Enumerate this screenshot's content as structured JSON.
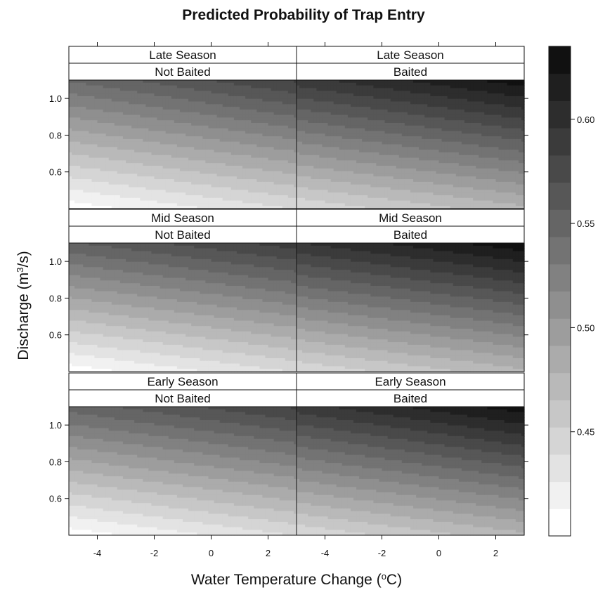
{
  "chart_data": {
    "type": "heatmap",
    "title": "Predicted Probability of Trap Entry",
    "xlabel": "Water Temperature Change (°C)",
    "ylabel": "Discharge (m³/s)",
    "xlabel_parts": {
      "pre": "Water Temperature Change (",
      "sup": "o",
      "post": "C)"
    },
    "ylabel_parts": {
      "pre": "Discharge (m",
      "sup": "3",
      "post": "/s)"
    },
    "x_range": [
      -5,
      3
    ],
    "y_range": [
      0.4,
      1.1
    ],
    "x_ticks": [
      -4,
      -2,
      0,
      2
    ],
    "x_tick_labels": [
      "-4",
      "-2",
      "0",
      "2"
    ],
    "y_ticks": [
      0.6,
      0.8,
      1.0
    ],
    "y_tick_labels": [
      "0.6",
      "0.8",
      "1.0"
    ],
    "colorbar": {
      "min": 0.4,
      "max": 0.635,
      "levels": 18,
      "ticks": [
        0.45,
        0.5,
        0.55,
        0.6
      ],
      "tick_labels": [
        "0.45",
        "0.50",
        "0.55",
        "0.60"
      ],
      "low_color": "#ffffff",
      "high_color": "#111111"
    },
    "panels": [
      {
        "season": "Late Season",
        "bait": "Not Baited",
        "row": 0,
        "col": 0,
        "corner_values": {
          "x_min_y_min": 0.405,
          "x_max_y_min": 0.44,
          "x_min_y_max": 0.545,
          "x_max_y_max": 0.585
        }
      },
      {
        "season": "Late Season",
        "bait": "Baited",
        "row": 0,
        "col": 1,
        "corner_values": {
          "x_min_y_min": 0.44,
          "x_max_y_min": 0.475,
          "x_min_y_max": 0.59,
          "x_max_y_max": 0.63
        }
      },
      {
        "season": "Mid Season",
        "bait": "Not Baited",
        "row": 1,
        "col": 0,
        "corner_values": {
          "x_min_y_min": 0.405,
          "x_max_y_min": 0.44,
          "x_min_y_max": 0.555,
          "x_max_y_max": 0.59
        }
      },
      {
        "season": "Mid Season",
        "bait": "Baited",
        "row": 1,
        "col": 1,
        "corner_values": {
          "x_min_y_min": 0.44,
          "x_max_y_min": 0.475,
          "x_min_y_max": 0.595,
          "x_max_y_max": 0.632
        }
      },
      {
        "season": "Early Season",
        "bait": "Not Baited",
        "row": 2,
        "col": 0,
        "corner_values": {
          "x_min_y_min": 0.405,
          "x_max_y_min": 0.44,
          "x_min_y_max": 0.55,
          "x_max_y_max": 0.585
        }
      },
      {
        "season": "Early Season",
        "bait": "Baited",
        "row": 2,
        "col": 1,
        "corner_values": {
          "x_min_y_min": 0.44,
          "x_max_y_min": 0.475,
          "x_min_y_max": 0.59,
          "x_max_y_max": 0.63
        }
      }
    ]
  }
}
